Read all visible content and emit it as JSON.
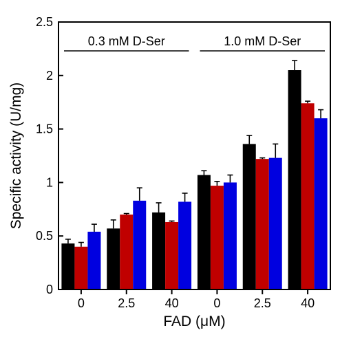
{
  "chart_data": {
    "type": "bar",
    "ylabel": "Specific activity (U/mg)",
    "xlabel": "FAD (μM)",
    "ylim": [
      0,
      2.5
    ],
    "yticks": [
      "0",
      "0.5",
      "1",
      "1.5",
      "2",
      "2.5"
    ],
    "categories": [
      "0",
      "2.5",
      "40",
      "0",
      "2.5",
      "40"
    ],
    "group_labels": [
      "0.3 mM D-Ser",
      "1.0 mM D-Ser"
    ],
    "grid": false,
    "series": [
      {
        "color": "#000000",
        "values": [
          0.43,
          0.57,
          0.72,
          1.07,
          1.36,
          2.05
        ],
        "errors": [
          0.04,
          0.08,
          0.09,
          0.04,
          0.08,
          0.09
        ]
      },
      {
        "color": "#c00000",
        "values": [
          0.4,
          0.7,
          0.63,
          0.97,
          1.22,
          1.74
        ],
        "errors": [
          0.04,
          0.01,
          0.01,
          0.04,
          0.01,
          0.02
        ]
      },
      {
        "color": "#0000e0",
        "values": [
          0.54,
          0.83,
          0.82,
          1.0,
          1.23,
          1.6
        ],
        "errors": [
          0.07,
          0.12,
          0.08,
          0.07,
          0.13,
          0.08
        ]
      }
    ]
  }
}
